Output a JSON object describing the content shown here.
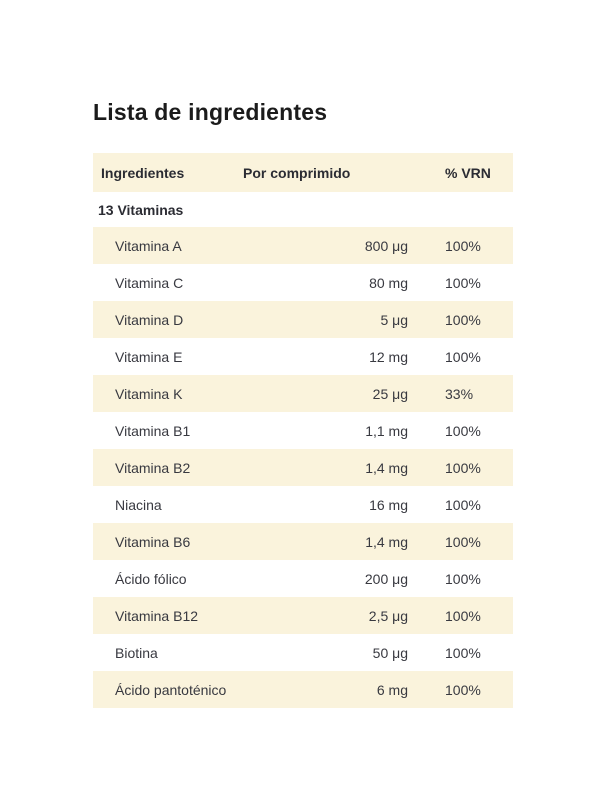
{
  "page": {
    "title": "Lista de ingredientes"
  },
  "table": {
    "headers": {
      "ingredient": "Ingredientes",
      "per_tablet": "Por comprimido",
      "vrn": "% VRN"
    },
    "section_label": "13 Vitaminas",
    "rows": [
      {
        "name": "Vitamina A",
        "amount": "800 μg",
        "vrn": "100%"
      },
      {
        "name": "Vitamina C",
        "amount": "80 mg",
        "vrn": "100%"
      },
      {
        "name": "Vitamina D",
        "amount": "5 μg",
        "vrn": "100%"
      },
      {
        "name": "Vitamina E",
        "amount": "12 mg",
        "vrn": "100%"
      },
      {
        "name": "Vitamina K",
        "amount": "25 μg",
        "vrn": "33%"
      },
      {
        "name": "Vitamina B1",
        "amount": "1,1 mg",
        "vrn": "100%"
      },
      {
        "name": "Vitamina B2",
        "amount": "1,4 mg",
        "vrn": "100%"
      },
      {
        "name": "Niacina",
        "amount": "16 mg",
        "vrn": "100%"
      },
      {
        "name": "Vitamina B6",
        "amount": "1,4 mg",
        "vrn": "100%"
      },
      {
        "name": "Ácido fólico",
        "amount": "200 μg",
        "vrn": "100%"
      },
      {
        "name": "Vitamina B12",
        "amount": "2,5 μg",
        "vrn": "100%"
      },
      {
        "name": "Biotina",
        "amount": "50 μg",
        "vrn": "100%"
      },
      {
        "name": "Ácido pantoténico",
        "amount": "6 mg",
        "vrn": "100%"
      }
    ]
  },
  "colors": {
    "row_highlight": "#faf3dc",
    "title_text": "#1b1b1b",
    "body_text": "#33343a"
  }
}
